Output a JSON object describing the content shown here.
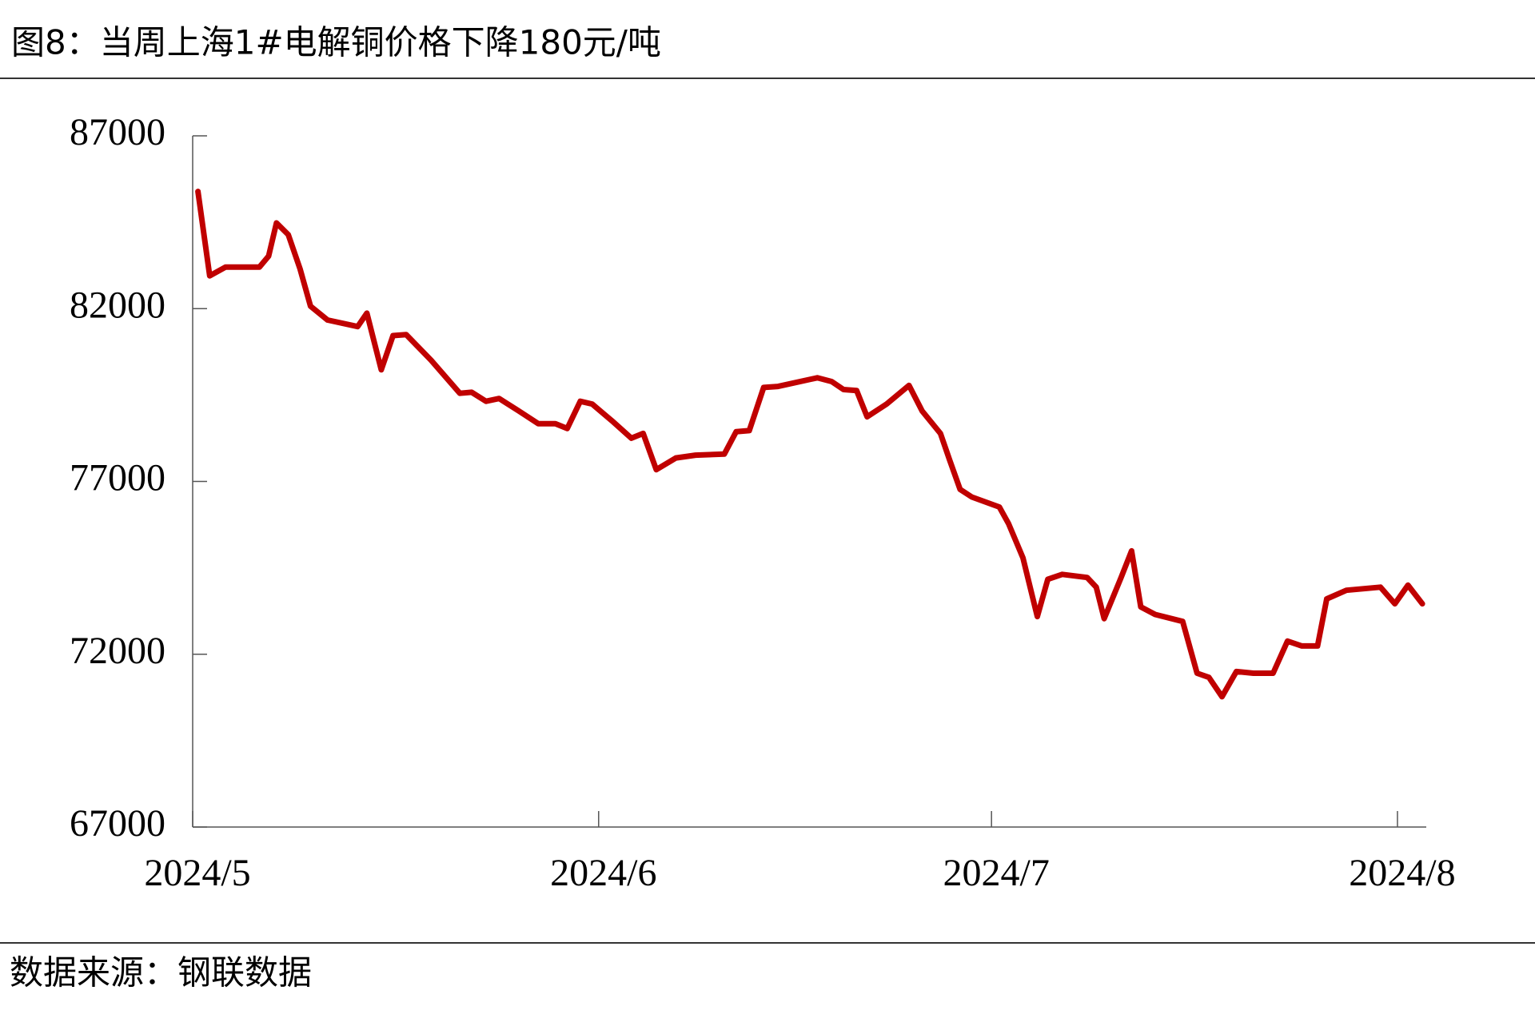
{
  "chart_data": {
    "type": "line",
    "title": "图8：当周上海1#电解铜价格下降180元/吨",
    "source": "数据来源：钢联数据",
    "color": "#c00000",
    "x": [
      0.4,
      1.3,
      2.5,
      5.1,
      5.8,
      6.4,
      7.3,
      8.2,
      9.0,
      10.3,
      12.6,
      13.3,
      14.4,
      15.3,
      16.3,
      18.2,
      20.4,
      21.3,
      22.4,
      23.4,
      24.9,
      26.4,
      27.7,
      28.6,
      29.6,
      30.5,
      32.0,
      33.5,
      34.4,
      35.4,
      36.9,
      38.4,
      40.6,
      41.5,
      42.5,
      43.6,
      44.7,
      47.7,
      48.8,
      49.7,
      50.7,
      51.5,
      53.0,
      54.7,
      55.7,
      57.1,
      57.8,
      58.6,
      59.5,
      61.6,
      62.3,
      63.4,
      64.5,
      65.3,
      66.4,
      68.3,
      69.0,
      69.6,
      70.9,
      71.7,
      72.4,
      73.5,
      75.6,
      76.7,
      77.6,
      78.6,
      79.7,
      81.0,
      82.5,
      83.6,
      84.7,
      85.9,
      86.6,
      88.1,
      90.7,
      91.8,
      92.8,
      93.9
    ],
    "values": [
      85390,
      82950,
      83200,
      83200,
      83520,
      84480,
      84140,
      83150,
      82070,
      81670,
      81480,
      81870,
      80230,
      81220,
      81250,
      80510,
      79550,
      79580,
      79320,
      79400,
      79040,
      78670,
      78670,
      78530,
      79320,
      79240,
      78760,
      78250,
      78390,
      77340,
      77680,
      77760,
      77790,
      78440,
      78470,
      79720,
      79750,
      80000,
      79890,
      79660,
      79630,
      78870,
      79240,
      79780,
      79040,
      78390,
      77620,
      76770,
      76550,
      76260,
      75780,
      74790,
      73090,
      74170,
      74310,
      74220,
      73940,
      73030,
      74220,
      74990,
      73370,
      73150,
      72950,
      71450,
      71330,
      70770,
      71500,
      71450,
      71450,
      72380,
      72240,
      72240,
      73600,
      73850,
      73940,
      73460,
      74000,
      73460
    ],
    "xlim": [
      0,
      94.2
    ],
    "xticks": [
      {
        "value": 0,
        "label": "2024/5"
      },
      {
        "value": 31,
        "label": "2024/6"
      },
      {
        "value": 61,
        "label": "2024/7"
      },
      {
        "value": 92,
        "label": "2024/8"
      }
    ],
    "ylim": [
      67000,
      87000
    ],
    "yticks": [
      87000,
      82000,
      77000,
      72000,
      67000
    ]
  }
}
